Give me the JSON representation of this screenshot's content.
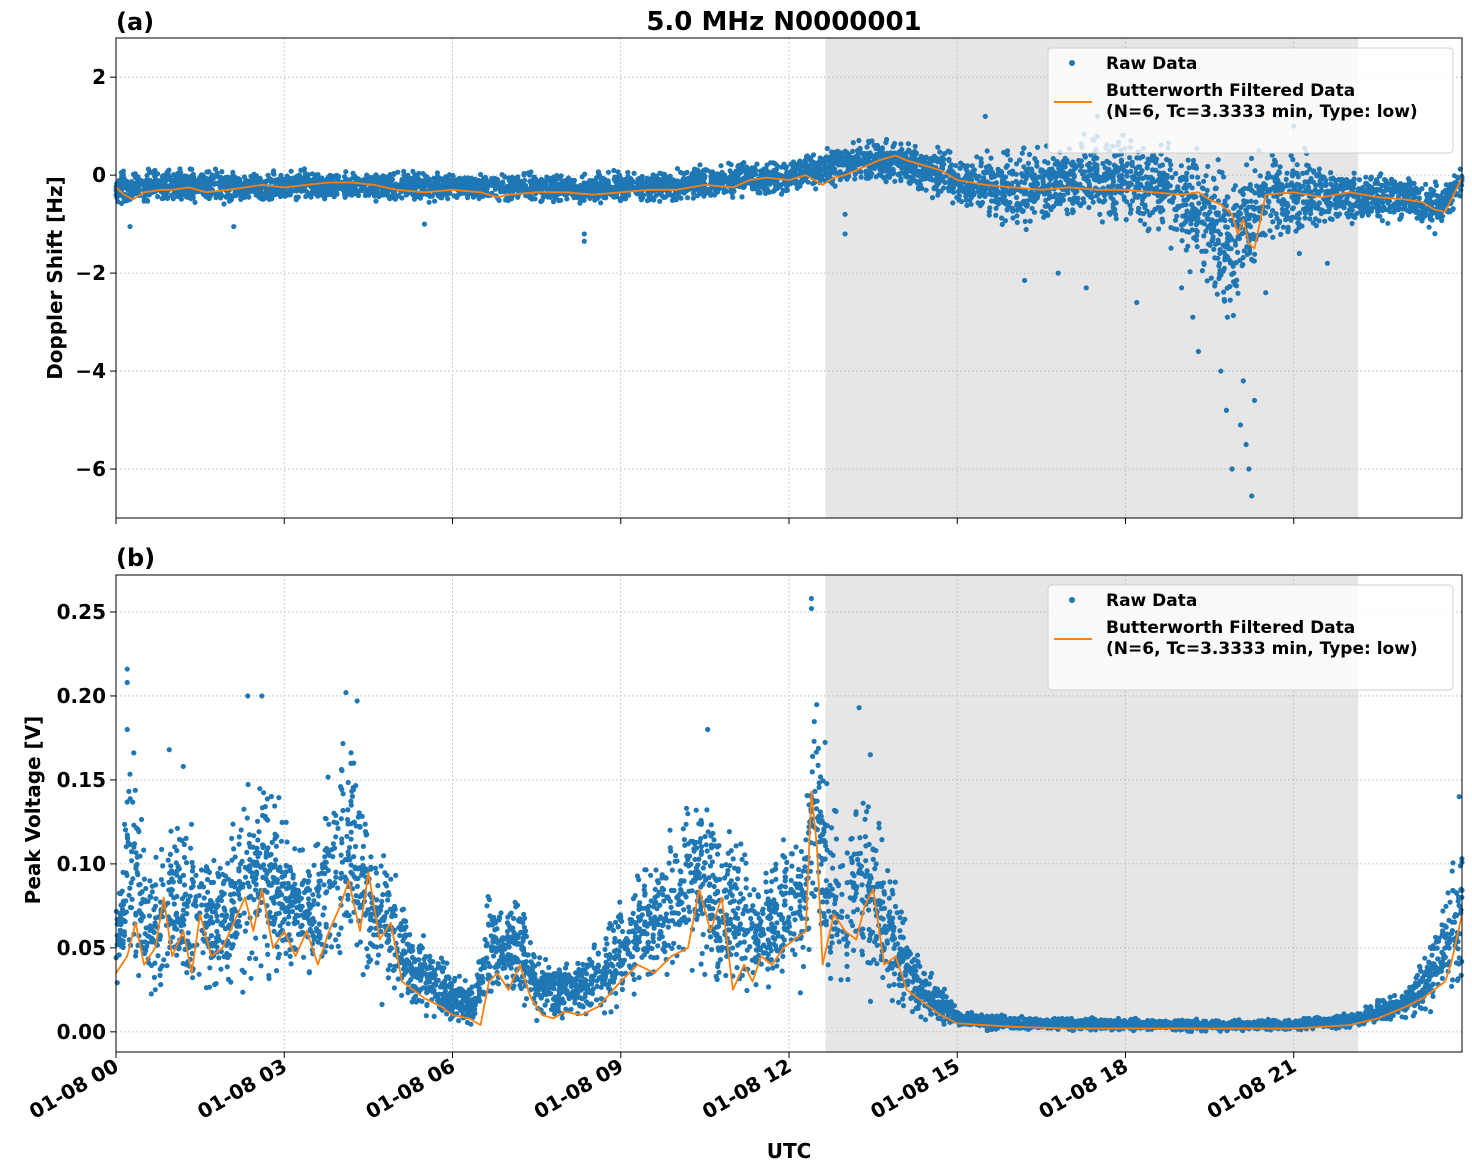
{
  "figure": {
    "title": "5.0 MHz N0000001",
    "xlabel": "UTC"
  },
  "chart_data": [
    {
      "type": "scatter",
      "panel_label": "(a)",
      "title": "5.0 MHz N0000001",
      "xlabel": "",
      "ylabel": "Doppler Shift [Hz]",
      "xlim_hours": [
        0,
        24
      ],
      "ylim": [
        -7.0,
        2.8
      ],
      "yticks": [
        2,
        0,
        -2,
        -4,
        -6
      ],
      "ytick_labels": [
        "2",
        "0",
        "−2",
        "−4",
        "−6"
      ],
      "xticks_hours": [
        0,
        3,
        6,
        9,
        12,
        15,
        18,
        21
      ],
      "xtick_labels": [
        "01-08 00",
        "01-08 03",
        "01-08 06",
        "01-08 09",
        "01-08 12",
        "01-08 15",
        "01-08 18",
        "01-08 21"
      ],
      "x_date": "01-08",
      "grid": true,
      "shaded_span_hours": [
        12.65,
        22.15
      ],
      "legend_position": "upper right",
      "legend": [
        "Raw Data",
        "Butterworth Filtered Data\n(N=6, Tc=3.3333 min, Type: low)"
      ],
      "series": [
        {
          "name": "Raw Data",
          "kind": "scatter",
          "color": "#1f77b4",
          "envelope": {
            "x_hours": [
              0,
              1,
              2,
              3,
              4,
              5,
              6,
              7,
              8,
              9,
              10,
              11,
              12,
              12.7,
              13.5,
              14,
              15,
              16,
              17,
              18,
              19,
              19.8,
              20.3,
              21,
              22,
              23,
              23.6,
              24
            ],
            "low": [
              -0.7,
              -0.6,
              -0.65,
              -0.6,
              -0.55,
              -0.6,
              -0.62,
              -0.6,
              -0.65,
              -0.62,
              -0.6,
              -0.55,
              -0.45,
              -0.3,
              -0.2,
              -0.3,
              -0.7,
              -1.3,
              -1.2,
              -1.2,
              -1.8,
              -3.5,
              -2.2,
              -1.5,
              -1.1,
              -1.0,
              -1.3,
              -0.5
            ],
            "high": [
              0.15,
              0.2,
              0.2,
              0.15,
              0.15,
              0.15,
              0.15,
              0.1,
              0.1,
              0.15,
              0.2,
              0.35,
              0.4,
              0.6,
              0.9,
              0.85,
              0.5,
              0.7,
              0.9,
              1.1,
              1.0,
              0.6,
              0.9,
              0.8,
              0.2,
              0.1,
              0.0,
              0.3
            ]
          },
          "outliers": [
            {
              "x_hours": 0.25,
              "y": -1.05
            },
            {
              "x_hours": 2.1,
              "y": -1.05
            },
            {
              "x_hours": 5.5,
              "y": -1.0
            },
            {
              "x_hours": 8.35,
              "y": -1.35
            },
            {
              "x_hours": 8.35,
              "y": -1.2
            },
            {
              "x_hours": 13.0,
              "y": -1.2
            },
            {
              "x_hours": 13.0,
              "y": -0.8
            },
            {
              "x_hours": 15.5,
              "y": 1.2
            },
            {
              "x_hours": 16.2,
              "y": -2.15
            },
            {
              "x_hours": 16.8,
              "y": -2.0
            },
            {
              "x_hours": 17.3,
              "y": -2.3
            },
            {
              "x_hours": 17.5,
              "y": 1.2
            },
            {
              "x_hours": 18.2,
              "y": -2.6
            },
            {
              "x_hours": 18.4,
              "y": 1.2
            },
            {
              "x_hours": 19.0,
              "y": -2.3
            },
            {
              "x_hours": 19.2,
              "y": -2.9
            },
            {
              "x_hours": 19.3,
              "y": -3.6
            },
            {
              "x_hours": 19.6,
              "y": -2.2
            },
            {
              "x_hours": 19.7,
              "y": -4.0
            },
            {
              "x_hours": 19.8,
              "y": -4.8
            },
            {
              "x_hours": 19.9,
              "y": -6.0
            },
            {
              "x_hours": 20.05,
              "y": -5.1
            },
            {
              "x_hours": 20.1,
              "y": -4.2
            },
            {
              "x_hours": 20.15,
              "y": -5.5
            },
            {
              "x_hours": 20.2,
              "y": -6.0
            },
            {
              "x_hours": 20.25,
              "y": -6.55
            },
            {
              "x_hours": 20.3,
              "y": -4.6
            },
            {
              "x_hours": 20.5,
              "y": -2.4
            },
            {
              "x_hours": 20.7,
              "y": 1.2
            },
            {
              "x_hours": 21.0,
              "y": 1.0
            },
            {
              "x_hours": 21.1,
              "y": -1.6
            },
            {
              "x_hours": 21.6,
              "y": -1.8
            }
          ]
        },
        {
          "name": "Butterworth Filtered Data\n(N=6, Tc=3.3333 min, Type: low)",
          "kind": "line",
          "color": "#ff7f0e",
          "x_hours": [
            0,
            0.15,
            0.3,
            0.5,
            0.8,
            1.0,
            1.3,
            1.6,
            2.0,
            2.3,
            2.6,
            3.0,
            3.4,
            3.8,
            4.2,
            4.6,
            5.0,
            5.5,
            6.0,
            6.5,
            6.8,
            7.0,
            7.5,
            8.0,
            8.5,
            9.0,
            9.5,
            10.0,
            10.5,
            11.0,
            11.3,
            11.6,
            12.0,
            12.3,
            12.6,
            12.8,
            13.0,
            13.3,
            13.6,
            13.9,
            14.1,
            14.4,
            14.7,
            15.0,
            15.5,
            16.0,
            16.5,
            17.0,
            17.5,
            18.0,
            18.5,
            19.0,
            19.3,
            19.5,
            19.7,
            19.9,
            20.0,
            20.1,
            20.2,
            20.3,
            20.5,
            21.0,
            21.5,
            22.0,
            22.5,
            23.0,
            23.3,
            23.5,
            23.7,
            23.85,
            24.0
          ],
          "y": [
            -0.25,
            -0.4,
            -0.5,
            -0.35,
            -0.3,
            -0.3,
            -0.25,
            -0.35,
            -0.3,
            -0.25,
            -0.2,
            -0.25,
            -0.2,
            -0.15,
            -0.15,
            -0.2,
            -0.3,
            -0.35,
            -0.3,
            -0.35,
            -0.45,
            -0.4,
            -0.35,
            -0.35,
            -0.4,
            -0.35,
            -0.3,
            -0.3,
            -0.2,
            -0.25,
            -0.1,
            -0.05,
            -0.1,
            0.0,
            -0.2,
            -0.05,
            0.0,
            0.15,
            0.3,
            0.4,
            0.3,
            0.2,
            0.1,
            -0.1,
            -0.2,
            -0.25,
            -0.3,
            -0.25,
            -0.3,
            -0.3,
            -0.35,
            -0.4,
            -0.35,
            -0.5,
            -0.6,
            -0.8,
            -1.2,
            -0.9,
            -1.4,
            -1.5,
            -0.4,
            -0.35,
            -0.45,
            -0.35,
            -0.45,
            -0.5,
            -0.55,
            -0.7,
            -0.75,
            -0.4,
            -0.05
          ]
        }
      ]
    },
    {
      "type": "scatter",
      "panel_label": "(b)",
      "title": "",
      "xlabel": "UTC",
      "ylabel": "Peak Voltage [V]",
      "xlim_hours": [
        0,
        24
      ],
      "ylim": [
        -0.012,
        0.272
      ],
      "yticks": [
        0.0,
        0.05,
        0.1,
        0.15,
        0.2,
        0.25
      ],
      "ytick_labels": [
        "0.00",
        "0.05",
        "0.10",
        "0.15",
        "0.20",
        "0.25"
      ],
      "xticks_hours": [
        0,
        3,
        6,
        9,
        12,
        15,
        18,
        21
      ],
      "xtick_labels": [
        "01-08 00",
        "01-08 03",
        "01-08 06",
        "01-08 09",
        "01-08 12",
        "01-08 15",
        "01-08 18",
        "01-08 21"
      ],
      "x_date": "01-08",
      "grid": true,
      "shaded_span_hours": [
        12.65,
        22.15
      ],
      "legend_position": "upper right",
      "legend": [
        "Raw Data",
        "Butterworth Filtered Data\n(N=6, Tc=3.3333 min, Type: low)"
      ],
      "series": [
        {
          "name": "Raw Data",
          "kind": "scatter",
          "color": "#1f77b4",
          "envelope": {
            "x_hours": [
              0,
              0.3,
              0.6,
              1.0,
              1.5,
              2.0,
              2.4,
              2.8,
              3.2,
              3.6,
              4.0,
              4.3,
              4.6,
              5.0,
              5.3,
              5.7,
              6.0,
              6.4,
              6.6,
              6.9,
              7.2,
              7.5,
              7.8,
              8.2,
              8.6,
              9.0,
              9.4,
              9.8,
              10.2,
              10.5,
              10.8,
              11.1,
              11.4,
              11.7,
              12.0,
              12.3,
              12.45,
              12.7,
              13.0,
              13.3,
              13.6,
              14.0,
              14.3,
              14.7,
              15.0,
              16.0,
              18.0,
              20.0,
              21.0,
              22.0,
              22.5,
              23.0,
              23.5,
              23.8,
              24.0
            ],
            "low": [
              0.012,
              0.015,
              0.012,
              0.015,
              0.015,
              0.015,
              0.016,
              0.015,
              0.015,
              0.014,
              0.016,
              0.018,
              0.015,
              0.008,
              0.005,
              0.003,
              0.002,
              0.002,
              0.012,
              0.015,
              0.01,
              0.005,
              0.004,
              0.003,
              0.004,
              0.006,
              0.012,
              0.018,
              0.02,
              0.016,
              0.015,
              0.012,
              0.016,
              0.018,
              0.02,
              0.02,
              0.018,
              0.015,
              0.014,
              0.012,
              0.01,
              0.007,
              0.004,
              0.002,
              0.001,
              0.0,
              0.0,
              0.0,
              0.0,
              0.001,
              0.003,
              0.006,
              0.01,
              0.015,
              0.02
            ],
            "high": [
              0.085,
              0.2,
              0.11,
              0.14,
              0.13,
              0.12,
              0.17,
              0.16,
              0.12,
              0.13,
              0.2,
              0.19,
              0.13,
              0.11,
              0.065,
              0.055,
              0.04,
              0.03,
              0.09,
              0.08,
              0.09,
              0.05,
              0.045,
              0.05,
              0.06,
              0.085,
              0.11,
              0.13,
              0.15,
              0.16,
              0.12,
              0.14,
              0.1,
              0.11,
              0.14,
              0.14,
              0.24,
              0.16,
              0.12,
              0.18,
              0.14,
              0.08,
              0.05,
              0.03,
              0.015,
              0.01,
              0.009,
              0.008,
              0.009,
              0.012,
              0.02,
              0.03,
              0.06,
              0.1,
              0.13
            ]
          },
          "outliers": [
            {
              "x_hours": 0.2,
              "y": 0.216
            },
            {
              "x_hours": 0.2,
              "y": 0.208
            },
            {
              "x_hours": 0.2,
              "y": 0.18
            },
            {
              "x_hours": 2.35,
              "y": 0.2
            },
            {
              "x_hours": 2.6,
              "y": 0.2
            },
            {
              "x_hours": 4.1,
              "y": 0.202
            },
            {
              "x_hours": 4.3,
              "y": 0.197
            },
            {
              "x_hours": 0.95,
              "y": 0.168
            },
            {
              "x_hours": 1.2,
              "y": 0.158
            },
            {
              "x_hours": 10.55,
              "y": 0.18
            },
            {
              "x_hours": 12.4,
              "y": 0.258
            },
            {
              "x_hours": 12.4,
              "y": 0.252
            },
            {
              "x_hours": 13.25,
              "y": 0.193
            },
            {
              "x_hours": 13.45,
              "y": 0.165
            },
            {
              "x_hours": 23.95,
              "y": 0.14
            }
          ]
        },
        {
          "name": "Butterworth Filtered Data\n(N=6, Tc=3.3333 min, Type: low)",
          "kind": "line",
          "color": "#ff7f0e",
          "x_hours": [
            0,
            0.1,
            0.2,
            0.35,
            0.5,
            0.7,
            0.85,
            1.0,
            1.2,
            1.35,
            1.5,
            1.7,
            1.9,
            2.1,
            2.3,
            2.45,
            2.6,
            2.8,
            3.0,
            3.2,
            3.4,
            3.6,
            3.8,
            4.0,
            4.15,
            4.35,
            4.5,
            4.7,
            4.9,
            5.1,
            5.3,
            5.5,
            5.8,
            6.0,
            6.3,
            6.5,
            6.65,
            6.8,
            7.0,
            7.2,
            7.4,
            7.6,
            7.8,
            8.0,
            8.3,
            8.6,
            9.0,
            9.3,
            9.6,
            9.9,
            10.2,
            10.4,
            10.6,
            10.8,
            11.0,
            11.2,
            11.35,
            11.5,
            11.7,
            11.9,
            12.1,
            12.3,
            12.4,
            12.5,
            12.6,
            12.8,
            13.0,
            13.2,
            13.35,
            13.5,
            13.7,
            13.9,
            14.1,
            14.3,
            14.5,
            14.7,
            15.0,
            15.5,
            16.0,
            17.0,
            18.0,
            19.0,
            20.0,
            21.0,
            22.0,
            22.5,
            23.0,
            23.3,
            23.5,
            23.7,
            23.8,
            23.9,
            24.0
          ],
          "y": [
            0.035,
            0.04,
            0.045,
            0.065,
            0.04,
            0.05,
            0.08,
            0.045,
            0.06,
            0.035,
            0.07,
            0.045,
            0.05,
            0.065,
            0.08,
            0.06,
            0.085,
            0.05,
            0.06,
            0.045,
            0.06,
            0.04,
            0.06,
            0.075,
            0.09,
            0.06,
            0.095,
            0.055,
            0.065,
            0.03,
            0.025,
            0.02,
            0.015,
            0.01,
            0.008,
            0.004,
            0.03,
            0.035,
            0.025,
            0.04,
            0.02,
            0.01,
            0.008,
            0.012,
            0.01,
            0.015,
            0.03,
            0.04,
            0.035,
            0.045,
            0.05,
            0.085,
            0.06,
            0.08,
            0.025,
            0.04,
            0.03,
            0.045,
            0.04,
            0.05,
            0.055,
            0.06,
            0.143,
            0.11,
            0.04,
            0.07,
            0.06,
            0.055,
            0.075,
            0.085,
            0.04,
            0.045,
            0.025,
            0.02,
            0.015,
            0.01,
            0.005,
            0.004,
            0.003,
            0.002,
            0.002,
            0.002,
            0.002,
            0.002,
            0.004,
            0.008,
            0.015,
            0.02,
            0.025,
            0.03,
            0.04,
            0.055,
            0.07
          ]
        }
      ]
    }
  ]
}
